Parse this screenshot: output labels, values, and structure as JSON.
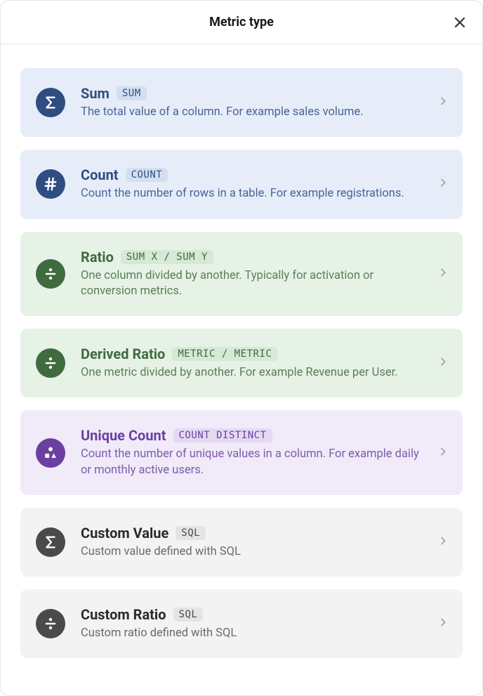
{
  "header": {
    "title": "Metric type"
  },
  "colors": {
    "blue": {
      "card_bg": "#e6edf9",
      "icon_bg": "#2f4d80",
      "title": "#2f4d80",
      "desc": "#4b6496",
      "badge_bg": "#d3dff0",
      "badge_text": "#2f4d80"
    },
    "green": {
      "card_bg": "#e6f2e6",
      "icon_bg": "#3f6b3f",
      "title": "#3f6b3f",
      "desc": "#5a7f5a",
      "badge_bg": "#d6e8d6",
      "badge_text": "#3f6b3f"
    },
    "purple": {
      "card_bg": "#f0eaf9",
      "icon_bg": "#6b3fa0",
      "title": "#6b3fa0",
      "desc": "#7d5cad",
      "badge_bg": "#e4d9f2",
      "badge_text": "#6b3fa0"
    },
    "gray": {
      "card_bg": "#f3f3f3",
      "icon_bg": "#4a4a4a",
      "title": "#2a2a2a",
      "desc": "#6b6b6b",
      "badge_bg": "#e4e4e4",
      "badge_text": "#4a4a4a"
    }
  },
  "options": [
    {
      "id": "sum",
      "icon": "sigma",
      "color": "blue",
      "title": "Sum",
      "badge": "SUM",
      "description": "The total value of a column. For example sales volume."
    },
    {
      "id": "count",
      "icon": "hash",
      "color": "blue",
      "title": "Count",
      "badge": "COUNT",
      "description": "Count the number of rows in a table. For example registrations."
    },
    {
      "id": "ratio",
      "icon": "divide",
      "color": "green",
      "title": "Ratio",
      "badge": "SUM X / SUM Y",
      "description": "One column divided by another. Typically for activation or conversion metrics."
    },
    {
      "id": "derived-ratio",
      "icon": "divide",
      "color": "green",
      "title": "Derived Ratio",
      "badge": "METRIC / METRIC",
      "description": "One metric divided by another. For example Revenue per User."
    },
    {
      "id": "unique-count",
      "icon": "shapes",
      "color": "purple",
      "title": "Unique Count",
      "badge": "COUNT DISTINCT",
      "description": "Count the number of unique values in a column. For example daily or monthly active users."
    },
    {
      "id": "custom-value",
      "icon": "sigma",
      "color": "gray",
      "title": "Custom Value",
      "badge": "SQL",
      "description": "Custom value defined with SQL"
    },
    {
      "id": "custom-ratio",
      "icon": "divide",
      "color": "gray",
      "title": "Custom Ratio",
      "badge": "SQL",
      "description": "Custom ratio defined with SQL"
    }
  ]
}
